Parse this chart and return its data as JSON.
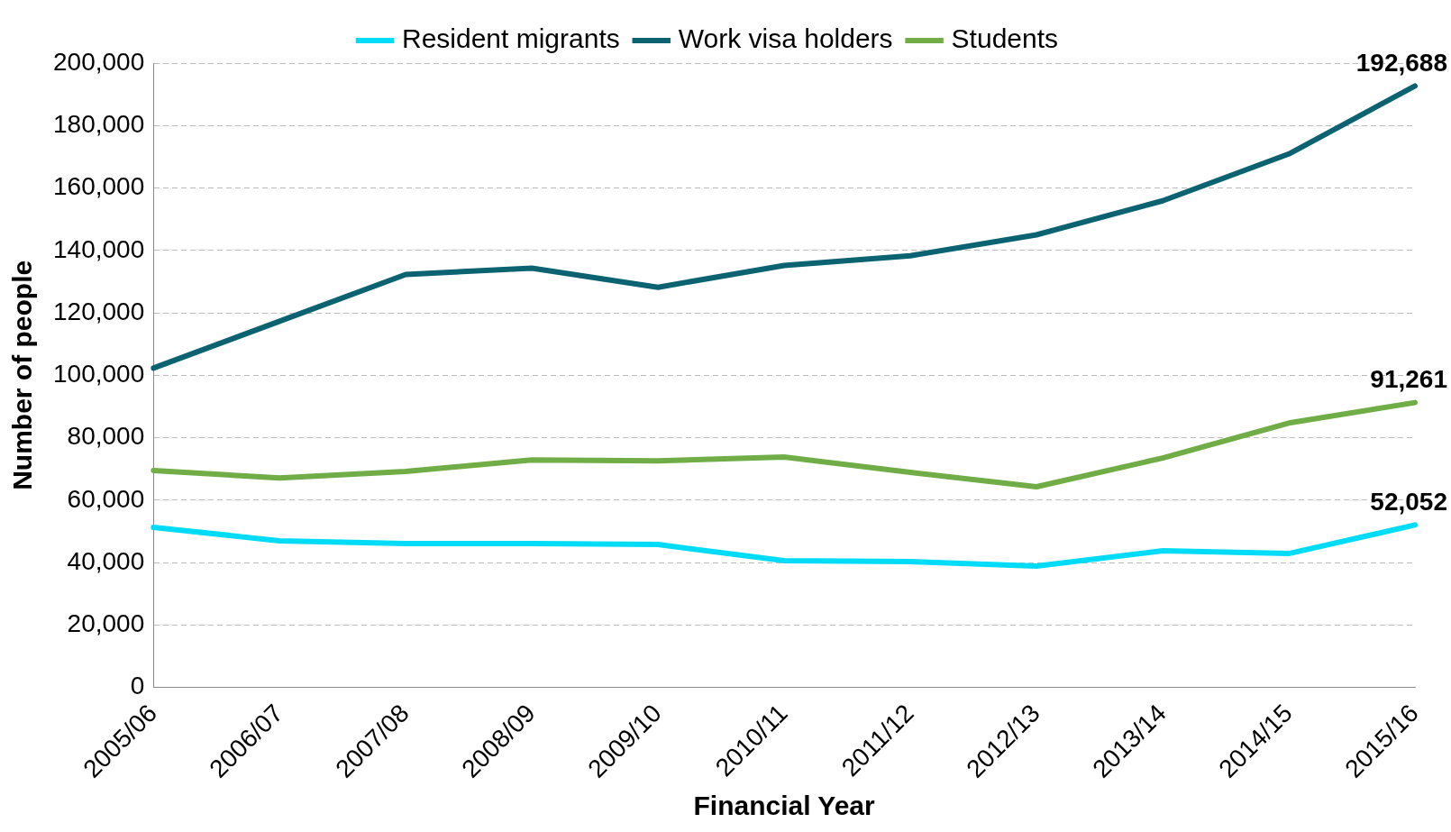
{
  "chart_data": {
    "type": "line",
    "xlabel": "Financial Year",
    "ylabel": "Number of people",
    "categories": [
      "2005/06",
      "2006/07",
      "2007/08",
      "2008/09",
      "2009/10",
      "2010/11",
      "2011/12",
      "2012/13",
      "2013/14",
      "2014/15",
      "2015/16"
    ],
    "series": [
      {
        "name": "Resident migrants",
        "color": "#00dcf8",
        "values": [
          51300,
          47000,
          46100,
          46100,
          45800,
          40600,
          40300,
          38900,
          43800,
          42900,
          52052
        ],
        "value_labels": [
          null,
          null,
          null,
          null,
          null,
          null,
          null,
          null,
          null,
          null,
          "52,052"
        ]
      },
      {
        "name": "Work visa holders",
        "color": "#0b6270",
        "values": [
          102300,
          117300,
          132300,
          134300,
          128200,
          135200,
          138300,
          145000,
          155900,
          170900,
          192688
        ],
        "value_labels": [
          null,
          null,
          null,
          null,
          null,
          null,
          null,
          null,
          null,
          null,
          "192,688"
        ]
      },
      {
        "name": "Students",
        "color": "#70ad47",
        "values": [
          69500,
          67100,
          69200,
          72900,
          72600,
          73800,
          68900,
          64300,
          73500,
          84700,
          91261
        ],
        "value_labels": [
          null,
          null,
          null,
          null,
          null,
          null,
          null,
          null,
          null,
          null,
          "91,261"
        ]
      }
    ],
    "ylim": [
      0,
      200000
    ],
    "yticks": [
      {
        "value": 0,
        "label": "0"
      },
      {
        "value": 20000,
        "label": "20,000"
      },
      {
        "value": 40000,
        "label": "40,000"
      },
      {
        "value": 60000,
        "label": "60,000"
      },
      {
        "value": 80000,
        "label": "80,000"
      },
      {
        "value": 100000,
        "label": "100,000"
      },
      {
        "value": 120000,
        "label": "120,000"
      },
      {
        "value": 140000,
        "label": "140,000"
      },
      {
        "value": 160000,
        "label": "160,000"
      },
      {
        "value": 180000,
        "label": "180,000"
      },
      {
        "value": 200000,
        "label": "200,000"
      }
    ],
    "grid": "y",
    "legend": "top",
    "marker": "none",
    "line_style": "solid"
  }
}
